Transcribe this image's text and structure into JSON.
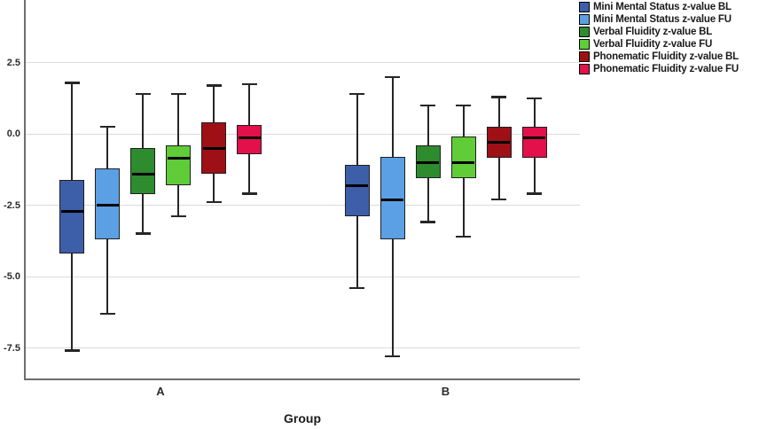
{
  "figure": {
    "background": "#FFFFFF",
    "text_color": "#1A1A1A",
    "gridline_color": "#DBDBDB",
    "axis_color": "#6E6E6E",
    "box_border_color": "#1F1F1F"
  },
  "chart_data": {
    "type": "boxplot",
    "title": "",
    "xlabel": "Group",
    "ylabel": "",
    "categories": [
      "A",
      "B"
    ],
    "y_ticks": [
      {
        "label": "2.5",
        "value": 2.5
      },
      {
        "label": "0.0",
        "value": 0.0
      },
      {
        "label": "-2.5",
        "value": -2.5
      },
      {
        "label": "-5.0",
        "value": -5.0
      },
      {
        "label": "-7.5",
        "value": -7.5
      }
    ],
    "ylim": [
      -8.6,
      4.7
    ],
    "grid": "horizontal",
    "legend_position": "top-right",
    "series": [
      {
        "name": "Mini Mental Status z-value BL",
        "color": "#3D5EA8",
        "boxes": [
          {
            "whisker_low": -7.6,
            "q1": -4.2,
            "median": -2.7,
            "q3": -1.6,
            "whisker_high": 1.8
          },
          {
            "whisker_low": -5.4,
            "q1": -2.9,
            "median": -1.8,
            "q3": -1.1,
            "whisker_high": 1.4
          }
        ]
      },
      {
        "name": "Mini Mental Status z-value FU",
        "color": "#5BA0E4",
        "boxes": [
          {
            "whisker_low": -6.3,
            "q1": -3.7,
            "median": -2.5,
            "q3": -1.2,
            "whisker_high": 0.25
          },
          {
            "whisker_low": -7.8,
            "q1": -3.7,
            "median": -2.3,
            "q3": -0.8,
            "whisker_high": 2.0
          }
        ]
      },
      {
        "name": "Verbal Fluidity z-value BL",
        "color": "#2E8B2E",
        "boxes": [
          {
            "whisker_low": -3.5,
            "q1": -2.1,
            "median": -1.4,
            "q3": -0.5,
            "whisker_high": 1.4
          },
          {
            "whisker_low": -3.1,
            "q1": -1.55,
            "median": -1.0,
            "q3": -0.4,
            "whisker_high": 1.0
          }
        ]
      },
      {
        "name": "Verbal Fluidity z-value FU",
        "color": "#5FCC38",
        "boxes": [
          {
            "whisker_low": -2.9,
            "q1": -1.8,
            "median": -0.85,
            "q3": -0.4,
            "whisker_high": 1.4
          },
          {
            "whisker_low": -3.6,
            "q1": -1.55,
            "median": -1.0,
            "q3": -0.1,
            "whisker_high": 1.0
          }
        ]
      },
      {
        "name": "Phonematic Fluidity z-value BL",
        "color": "#9E1016",
        "boxes": [
          {
            "whisker_low": -2.4,
            "q1": -1.4,
            "median": -0.5,
            "q3": 0.4,
            "whisker_high": 1.7
          },
          {
            "whisker_low": -2.3,
            "q1": -0.85,
            "median": -0.3,
            "q3": 0.25,
            "whisker_high": 1.3
          }
        ]
      },
      {
        "name": "Phonematic Fluidity z-value FU",
        "color": "#E3104A",
        "boxes": [
          {
            "whisker_low": -2.1,
            "q1": -0.7,
            "median": -0.15,
            "q3": 0.3,
            "whisker_high": 1.75
          },
          {
            "whisker_low": -2.1,
            "q1": -0.85,
            "median": -0.15,
            "q3": 0.25,
            "whisker_high": 1.25
          }
        ]
      }
    ]
  }
}
